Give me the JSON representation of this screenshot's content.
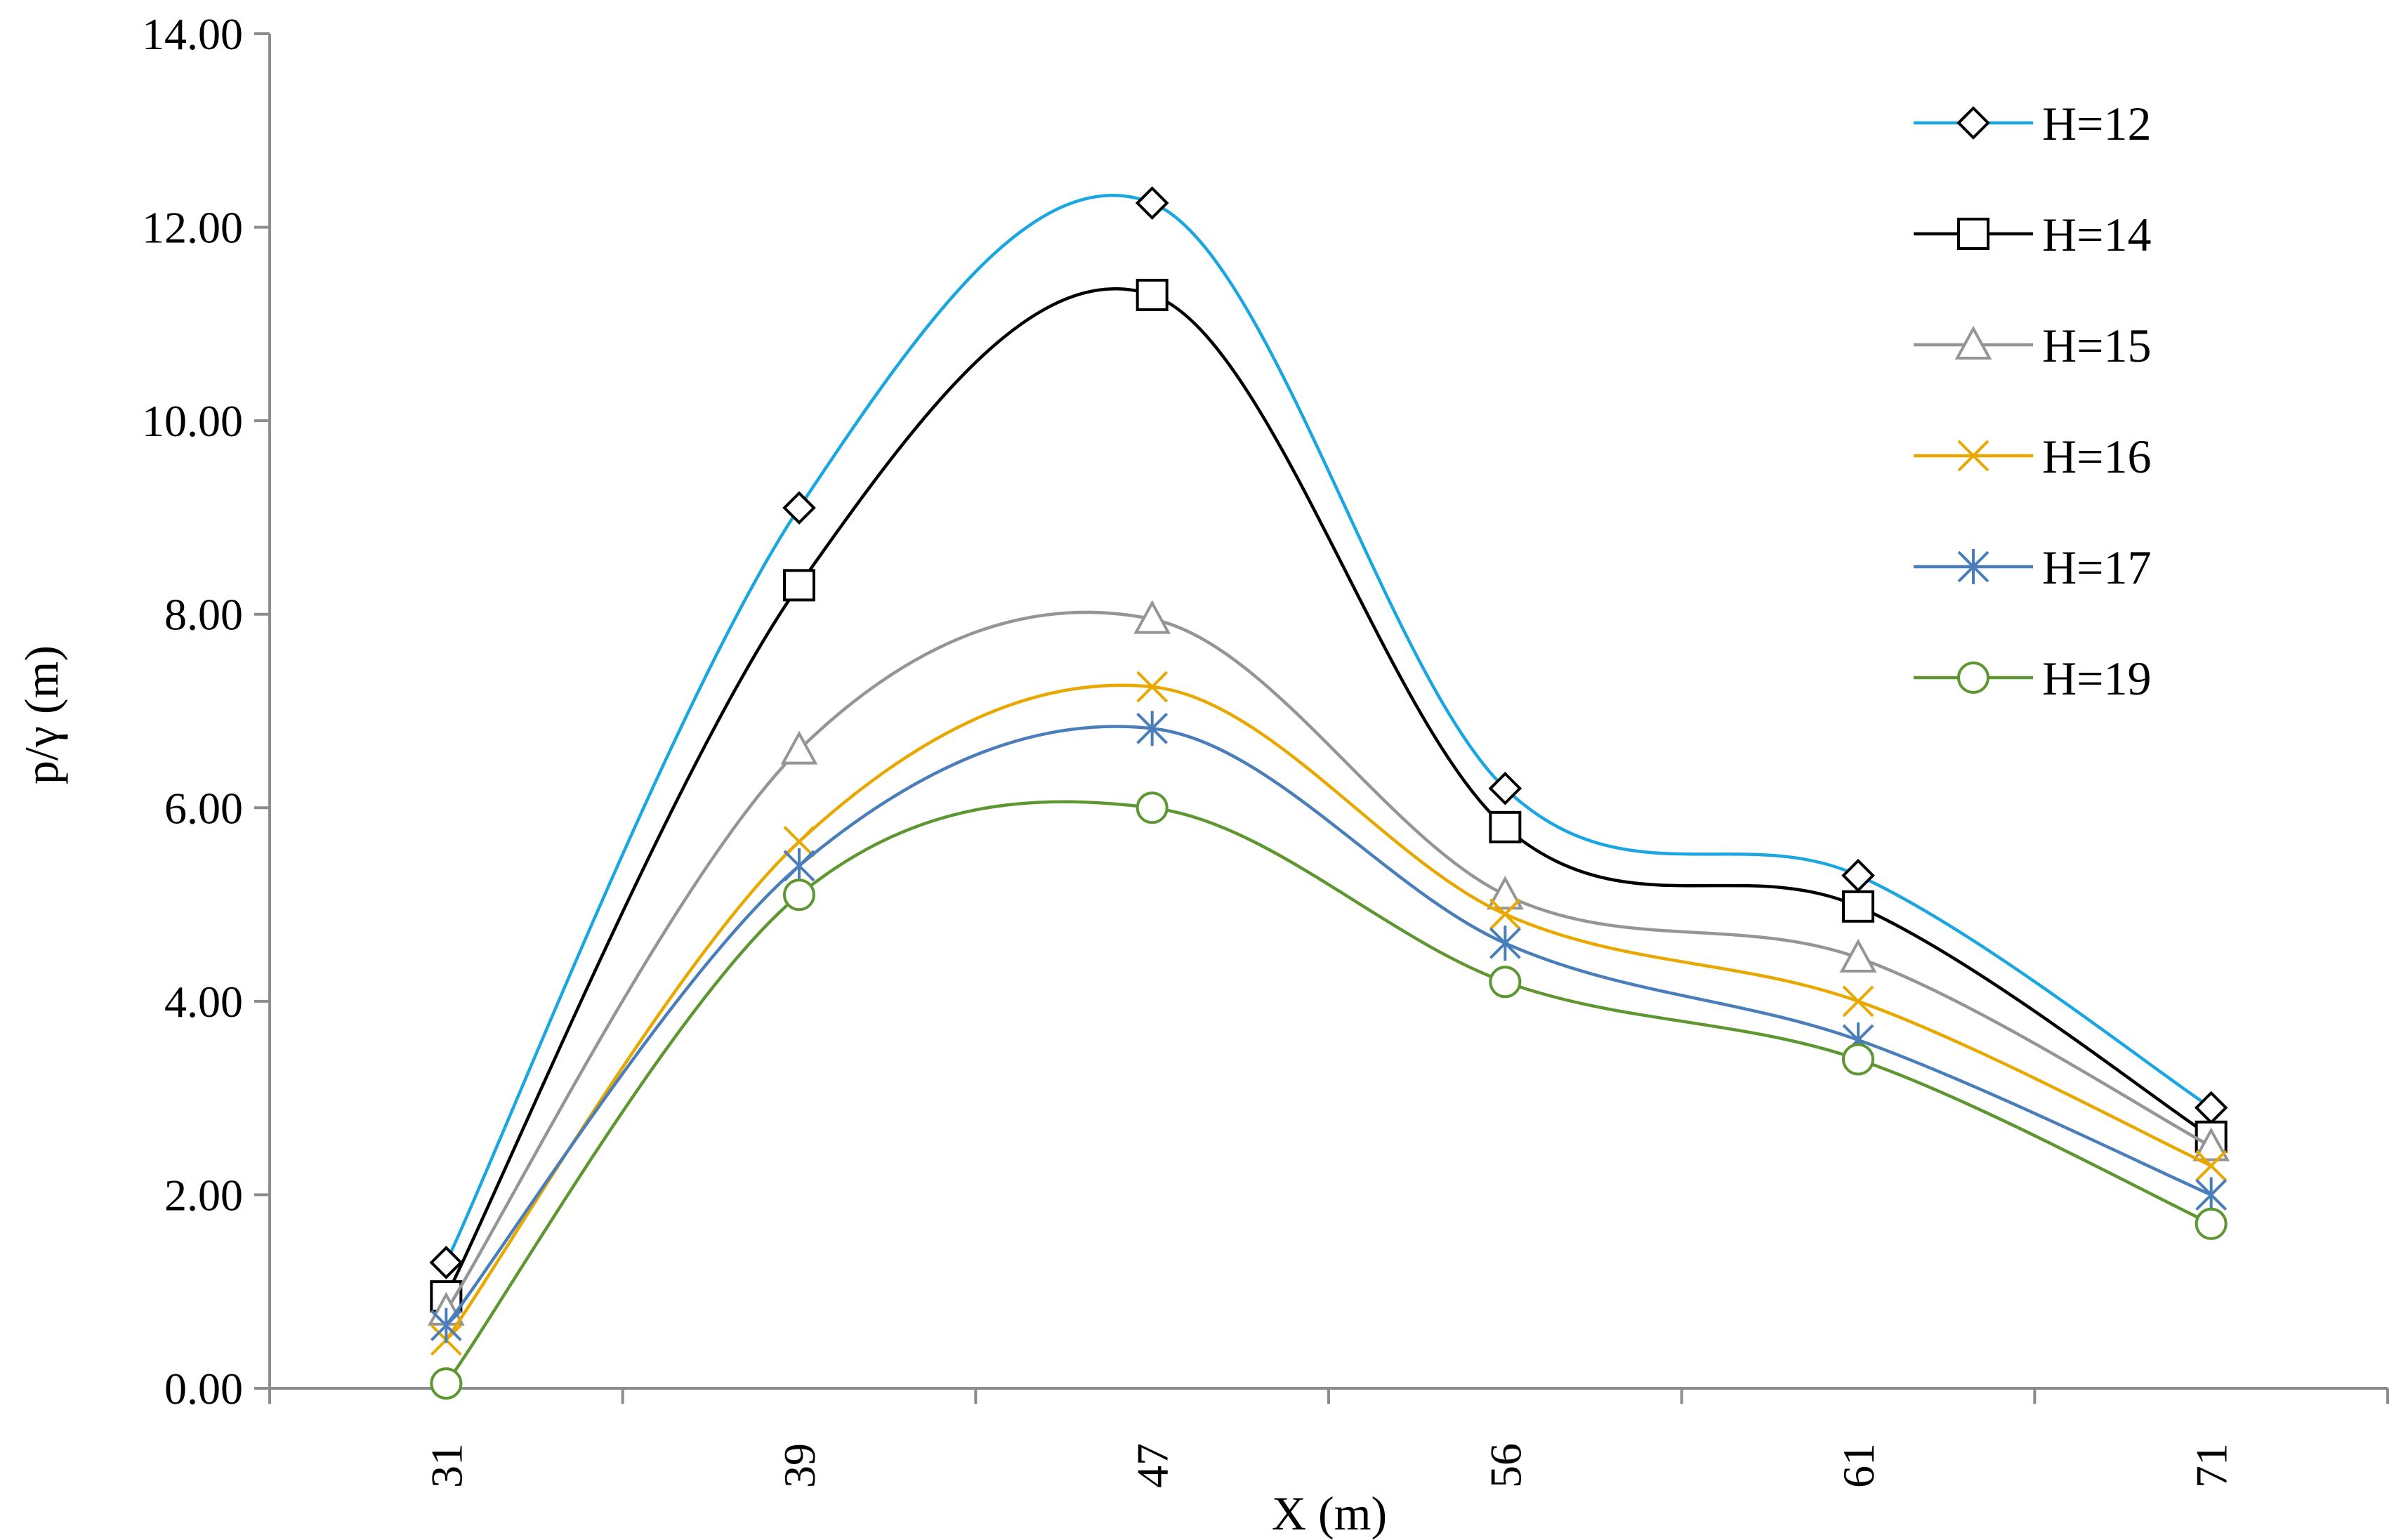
{
  "chart_data": {
    "type": "line",
    "smooth": true,
    "title": "",
    "xlabel": "X (m)",
    "ylabel": "p/γ (m)",
    "categories": [
      "31",
      "39",
      "47",
      "56",
      "61",
      "71"
    ],
    "ylim": [
      0,
      14
    ],
    "yticks": [
      "0.00",
      "2.00",
      "4.00",
      "6.00",
      "8.00",
      "10.00",
      "12.00",
      "14.00"
    ],
    "legend_position": "top-right",
    "series": [
      {
        "name": "H=12",
        "color": "#1AA7E1",
        "marker": "diamond",
        "values": [
          1.3,
          9.1,
          12.25,
          6.2,
          5.3,
          2.9
        ]
      },
      {
        "name": "H=14",
        "color": "#000000",
        "marker": "square",
        "values": [
          0.95,
          8.3,
          11.3,
          5.8,
          4.98,
          2.6
        ]
      },
      {
        "name": "H=15",
        "color": "#959595",
        "marker": "triangle",
        "values": [
          0.8,
          6.6,
          7.95,
          5.1,
          4.45,
          2.5
        ]
      },
      {
        "name": "H=16",
        "color": "#E8A800",
        "marker": "x",
        "values": [
          0.5,
          5.65,
          7.25,
          4.9,
          4.0,
          2.3
        ]
      },
      {
        "name": "H=17",
        "color": "#4A7EBB",
        "marker": "star",
        "values": [
          0.65,
          5.4,
          6.82,
          4.6,
          3.6,
          2.0
        ]
      },
      {
        "name": "H=19",
        "color": "#5E9732",
        "marker": "circle",
        "values": [
          0.05,
          5.1,
          6.0,
          4.2,
          3.4,
          1.7
        ]
      }
    ]
  }
}
